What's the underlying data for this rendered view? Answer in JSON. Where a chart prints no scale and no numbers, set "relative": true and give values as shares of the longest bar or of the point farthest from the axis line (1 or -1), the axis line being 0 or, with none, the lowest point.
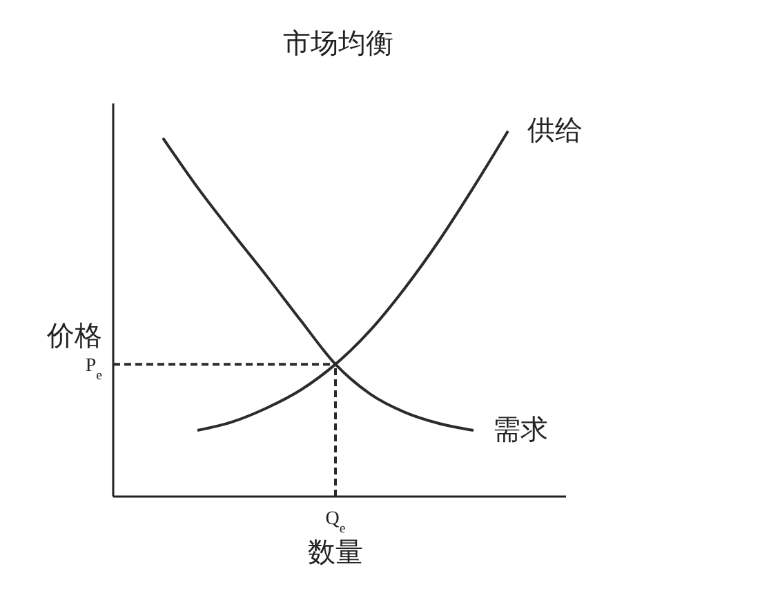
{
  "chart_data": {
    "type": "line",
    "title": "市场均衡",
    "xlabel": "数量",
    "ylabel": "价格",
    "relative": true,
    "marker": "none",
    "line_style": "solid",
    "categories": [
      null,
      null,
      null,
      null,
      null,
      null,
      null,
      null,
      null,
      null,
      null,
      null,
      null
    ],
    "annotations": [
      "Q$_{e}$"
    ],
    "series": [
      {
        "name": "供给",
        "color": "#2b2b2b",
        "values": [
          null,
          null,
          0.181,
          0.204,
          0.242,
          0.292,
          0.362,
          0.454,
          0.569,
          0.7,
          0.846,
          1.0,
          null
        ]
      },
      {
        "name": "需求",
        "color": "#2b2b2b",
        "values": [
          null,
          0.981,
          0.846,
          0.723,
          0.604,
          0.481,
          0.362,
          0.281,
          0.231,
          0.2,
          0.181,
          null,
          null
        ]
      }
    ],
    "ref_lines": [
      {
        "axis": "y",
        "value": 0.362,
        "label": "P$_{e}$",
        "line_style": "dashed",
        "color": "#2b2b2b"
      }
    ]
  }
}
